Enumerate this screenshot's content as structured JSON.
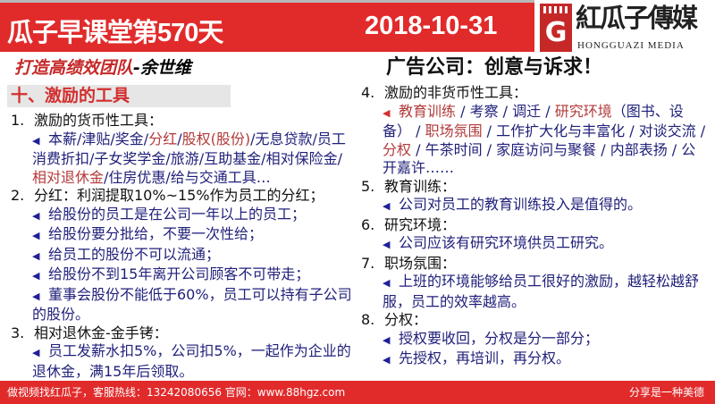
{
  "header": {
    "title": "瓜子早课堂第570天",
    "date": "2018-10-31",
    "logo_cn": "紅瓜子傳媒",
    "logo_en": "HONGGUAZI MEDIA",
    "logo_letter": "G"
  },
  "subtitle": {
    "topic": "打造高绩效团队",
    "author": "-余世维"
  },
  "right_title": "广告公司：创意与诉求！",
  "section_heading": "十、激励的工具",
  "colors": {
    "accent": "#e12b2b",
    "bullet_text": "#1f1f7a",
    "highlight": "#b33a3a"
  },
  "left": {
    "items": [
      {
        "num": "1.",
        "label": "激励的货币性工具：",
        "bullets": [
          {
            "arrow": "blue",
            "segments": [
              {
                "t": "本薪/津贴/奖金/",
                "c": ""
              },
              {
                "t": "分红",
                "c": "red"
              },
              {
                "t": "/",
                "c": ""
              },
              {
                "t": "股权(股份)",
                "c": "red"
              },
              {
                "t": "/无息贷款/员工消费折扣/子女奖学金/旅游/互助基金/相对保险金/",
                "c": ""
              },
              {
                "t": "相对退休金",
                "c": "red"
              },
              {
                "t": "/住房优惠/给与交通工具…",
                "c": ""
              }
            ]
          }
        ]
      },
      {
        "num": "2.",
        "label": "分红：利润提取10%~15%作为员工的分红；",
        "bullets": [
          {
            "arrow": "blue",
            "segments": [
              {
                "t": "给股份的员工是在公司一年以上的员工；",
                "c": ""
              }
            ]
          },
          {
            "arrow": "blue",
            "segments": [
              {
                "t": "给股份要分批给，不要一次性给；",
                "c": ""
              }
            ]
          },
          {
            "arrow": "blue",
            "segments": [
              {
                "t": "给员工的股份不可以流通；",
                "c": ""
              }
            ]
          },
          {
            "arrow": "blue",
            "segments": [
              {
                "t": "给股份不到15年离开公司顾客不可带走；",
                "c": ""
              }
            ]
          },
          {
            "arrow": "blue",
            "segments": [
              {
                "t": "董事会股份不能低于60%，员工可以持有子公司的股份。",
                "c": ""
              }
            ]
          }
        ]
      },
      {
        "num": "3.",
        "label": "相对退休金-金手铐：",
        "bullets": [
          {
            "arrow": "blue",
            "segments": [
              {
                "t": "员工发薪水扣5%，公司扣5%，一起作为企业的退休金，满15年后领取。",
                "c": ""
              }
            ]
          }
        ]
      }
    ]
  },
  "right": {
    "items": [
      {
        "num": "4.",
        "label": "激励的非货币性工具：",
        "bullets": [
          {
            "arrow": "red",
            "segments": [
              {
                "t": "教育训练",
                "c": "red"
              },
              {
                "t": " / 考察 / 调迁 / ",
                "c": ""
              },
              {
                "t": "研究环境",
                "c": "red"
              },
              {
                "t": "（图书、设备） / ",
                "c": ""
              },
              {
                "t": "职场氛围",
                "c": "red"
              },
              {
                "t": " / 工作扩大化与丰富化 / 对谈交流 / ",
                "c": ""
              },
              {
                "t": "分权",
                "c": "red"
              },
              {
                "t": " / 午茶时间 / 家庭访问与聚餐 / 内部表扬 / 公开嘉许……",
                "c": ""
              }
            ]
          }
        ]
      },
      {
        "num": "5.",
        "label": "教育训练：",
        "bullets": [
          {
            "arrow": "blue",
            "segments": [
              {
                "t": "公司对员工的教育训练投入是值得的。",
                "c": ""
              }
            ]
          }
        ]
      },
      {
        "num": "6.",
        "label": "研究环境：",
        "bullets": [
          {
            "arrow": "blue",
            "segments": [
              {
                "t": "公司应该有研究环境供员工研究。",
                "c": ""
              }
            ]
          }
        ]
      },
      {
        "num": "7.",
        "label": "职场氛围：",
        "bullets": [
          {
            "arrow": "blue",
            "segments": [
              {
                "t": "上班的环境能够给员工很好的激励，越轻松越舒服，员工的效率越高。",
                "c": ""
              }
            ]
          }
        ]
      },
      {
        "num": "8.",
        "label": "分权：",
        "bullets": [
          {
            "arrow": "blue",
            "segments": [
              {
                "t": "授权要收回，分权是分一部分；",
                "c": ""
              }
            ]
          },
          {
            "arrow": "blue",
            "segments": [
              {
                "t": "先授权，再培训，再分权。",
                "c": ""
              }
            ]
          }
        ]
      }
    ]
  },
  "footer": {
    "left": "做视频找红瓜子，客服热线：13242080656  官网：www.88hgz.com",
    "right": "分享是一种美德"
  }
}
